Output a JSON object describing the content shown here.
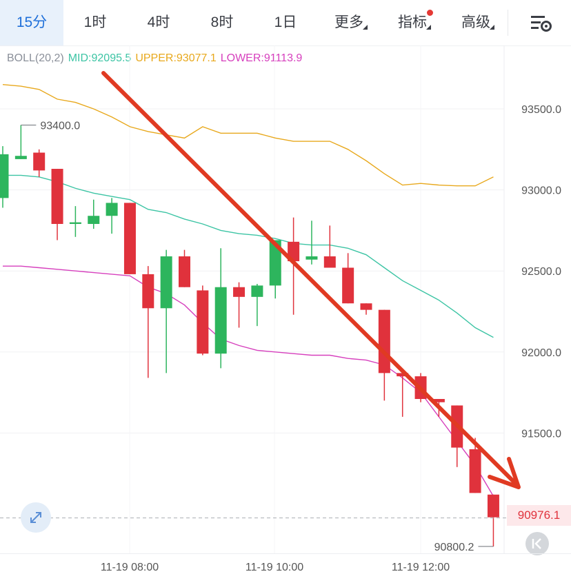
{
  "toolbar": {
    "tabs": [
      {
        "label": "15分",
        "active": true
      },
      {
        "label": "1时"
      },
      {
        "label": "4时"
      },
      {
        "label": "8时"
      },
      {
        "label": "1日"
      },
      {
        "label": "更多"
      },
      {
        "label": "指标"
      },
      {
        "label": "高级"
      }
    ],
    "accent_color": "#1e6fd9",
    "settings_icon": "chart-settings-icon"
  },
  "indicator": {
    "name": "BOLL(20,2)",
    "mid_label": "MID:92095.5",
    "upper_label": "UPPER:93077.1",
    "lower_label": "LOWER:91113.9",
    "mid_color": "#3cc4a4",
    "upper_color": "#e8a81c",
    "lower_color": "#d63fbd"
  },
  "current_price": "90976.1",
  "icons": {
    "expand": "expand-arrows-icon",
    "collapse": "collapse-left-icon"
  },
  "chart_data": {
    "type": "candlestick",
    "interval": "15分",
    "y_ticks": [
      93500.0,
      93000.0,
      92500.0,
      92000.0,
      91500.0
    ],
    "y_tick_labels": [
      "93500.0",
      "93000.0",
      "92500.0",
      "92000.0",
      "91500.0"
    ],
    "ylim": [
      90700,
      93900
    ],
    "x_tick_labels": [
      "11-19 08:00",
      "11-19 10:00",
      "11-19 12:00"
    ],
    "high_annotation": "93400.0",
    "low_annotation": "90800.2",
    "current_price": 90976.1,
    "up_color": "#2db55d",
    "down_color": "#e0323c",
    "candles": [
      {
        "o": 92950,
        "h": 93270,
        "c": 93220,
        "l": 92890
      },
      {
        "o": 93190,
        "h": 93400,
        "c": 93210,
        "l": 93190
      },
      {
        "o": 93230,
        "h": 93250,
        "c": 93120,
        "l": 93080
      },
      {
        "o": 93130,
        "h": 93130,
        "c": 92790,
        "l": 92690
      },
      {
        "o": 92790,
        "h": 92900,
        "c": 92800,
        "l": 92710
      },
      {
        "o": 92790,
        "h": 92940,
        "c": 92840,
        "l": 92760
      },
      {
        "o": 92840,
        "h": 92950,
        "c": 92920,
        "l": 92730
      },
      {
        "o": 92920,
        "h": 92920,
        "c": 92480,
        "l": 92480
      },
      {
        "o": 92480,
        "h": 92530,
        "c": 92270,
        "l": 91840
      },
      {
        "o": 92270,
        "h": 92630,
        "c": 92590,
        "l": 91870
      },
      {
        "o": 92590,
        "h": 92630,
        "c": 92400,
        "l": 92400
      },
      {
        "o": 92380,
        "h": 92410,
        "c": 91990,
        "l": 91980
      },
      {
        "o": 91990,
        "h": 92640,
        "c": 92400,
        "l": 91900
      },
      {
        "o": 92400,
        "h": 92430,
        "c": 92340,
        "l": 92150
      },
      {
        "o": 92340,
        "h": 92420,
        "c": 92410,
        "l": 92160
      },
      {
        "o": 92410,
        "h": 92690,
        "c": 92690,
        "l": 92330
      },
      {
        "o": 92680,
        "h": 92830,
        "c": 92560,
        "l": 92230
      },
      {
        "o": 92570,
        "h": 92810,
        "c": 92590,
        "l": 92540
      },
      {
        "o": 92590,
        "h": 92780,
        "c": 92520,
        "l": 92520
      },
      {
        "o": 92520,
        "h": 92610,
        "c": 92300,
        "l": 92300
      },
      {
        "o": 92300,
        "h": 92300,
        "c": 92260,
        "l": 92230
      },
      {
        "o": 92260,
        "h": 92260,
        "c": 91870,
        "l": 91700
      },
      {
        "o": 91870,
        "h": 91880,
        "c": 91850,
        "l": 91600
      },
      {
        "o": 91850,
        "h": 91870,
        "c": 91710,
        "l": 91690
      },
      {
        "o": 91710,
        "h": 91710,
        "c": 91690,
        "l": 91600
      },
      {
        "o": 91670,
        "h": 91670,
        "c": 91410,
        "l": 91290
      },
      {
        "o": 91400,
        "h": 91470,
        "c": 91130,
        "l": 91130
      },
      {
        "o": 91120,
        "h": 91120,
        "c": 90980,
        "l": 90800
      }
    ],
    "upper_band": [
      93650,
      93640,
      93620,
      93560,
      93540,
      93500,
      93450,
      93390,
      93360,
      93340,
      93320,
      93390,
      93350,
      93350,
      93350,
      93320,
      93300,
      93300,
      93300,
      93250,
      93180,
      93100,
      93030,
      93040,
      93030,
      93025,
      93025,
      93080
    ],
    "mid_band": [
      93090,
      93090,
      93080,
      93050,
      93010,
      92980,
      92960,
      92940,
      92880,
      92860,
      92820,
      92790,
      92750,
      92730,
      92720,
      92700,
      92670,
      92660,
      92660,
      92640,
      92600,
      92520,
      92440,
      92380,
      92320,
      92240,
      92150,
      92090
    ],
    "lower_band": [
      92530,
      92530,
      92520,
      92510,
      92500,
      92490,
      92480,
      92470,
      92400,
      92360,
      92290,
      92180,
      92080,
      92040,
      92010,
      92000,
      91990,
      91980,
      91980,
      91960,
      91950,
      91920,
      91840,
      91750,
      91600,
      91450,
      91300,
      91110
    ]
  }
}
